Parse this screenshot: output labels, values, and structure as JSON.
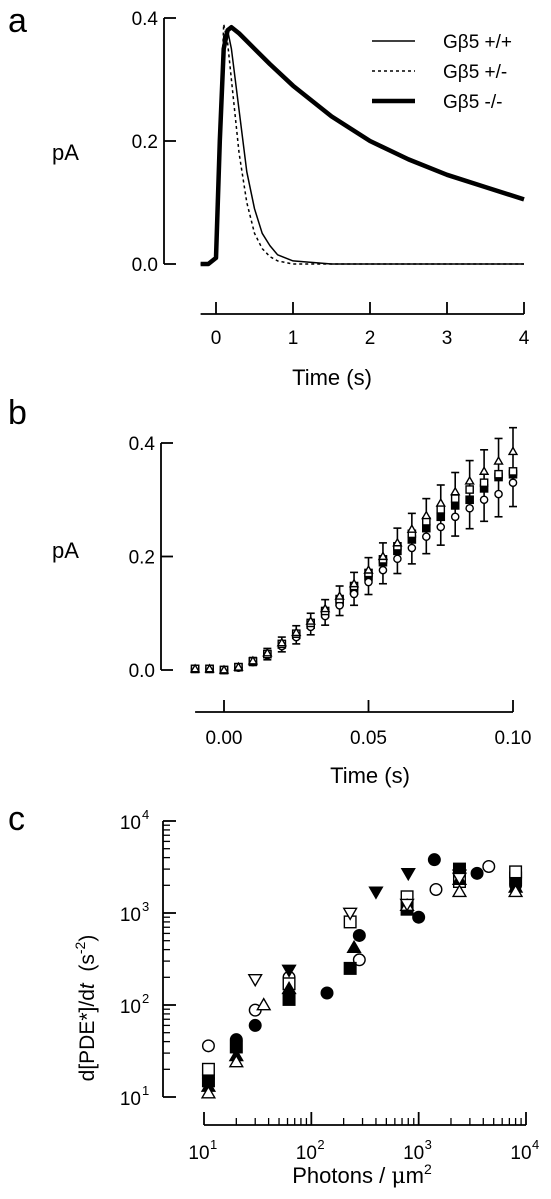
{
  "chart_data": [
    {
      "panel": "a",
      "type": "line",
      "xlabel": "Time (s)",
      "ylabel": "pA",
      "xlim": [
        -0.2,
        4
      ],
      "ylim": [
        0,
        0.4
      ],
      "xticks": [
        "0",
        "1",
        "2",
        "3",
        "4"
      ],
      "yticks": [
        "0.0",
        "0.2",
        "0.4"
      ],
      "legend_position": "top-right",
      "series": [
        {
          "name": "Gβ5 +/+",
          "style": "solid-thin",
          "x": [
            -0.2,
            -0.1,
            0,
            0.05,
            0.1,
            0.15,
            0.2,
            0.3,
            0.4,
            0.5,
            0.6,
            0.7,
            0.8,
            1.0,
            1.5,
            2,
            2.5,
            3,
            3.5,
            4
          ],
          "y": [
            0,
            0,
            0.01,
            0.2,
            0.37,
            0.38,
            0.35,
            0.25,
            0.15,
            0.09,
            0.05,
            0.03,
            0.015,
            0.005,
            0,
            0,
            0,
            0,
            0,
            0
          ]
        },
        {
          "name": "Gβ5 +/-",
          "style": "dotted",
          "x": [
            -0.2,
            -0.1,
            0,
            0.05,
            0.1,
            0.15,
            0.2,
            0.3,
            0.4,
            0.5,
            0.6,
            0.7,
            0.8,
            1.0,
            1.5,
            2,
            2.5,
            3,
            3.5,
            4
          ],
          "y": [
            0,
            0,
            0.01,
            0.22,
            0.39,
            0.36,
            0.3,
            0.18,
            0.1,
            0.05,
            0.025,
            0.012,
            0.005,
            0,
            0,
            0,
            0,
            0,
            0,
            0
          ]
        },
        {
          "name": "Gβ5 -/-",
          "style": "thick",
          "x": [
            -0.2,
            -0.1,
            0,
            0.05,
            0.1,
            0.15,
            0.2,
            0.3,
            0.5,
            0.7,
            1,
            1.5,
            2,
            2.5,
            3,
            3.5,
            4
          ],
          "y": [
            0,
            0,
            0.01,
            0.2,
            0.35,
            0.38,
            0.385,
            0.375,
            0.35,
            0.325,
            0.29,
            0.24,
            0.2,
            0.17,
            0.145,
            0.125,
            0.105
          ]
        }
      ]
    },
    {
      "panel": "b",
      "type": "scatter",
      "xlabel": "Time (s)",
      "ylabel": "pA",
      "xlim": [
        -0.01,
        0.1
      ],
      "ylim": [
        0,
        0.4
      ],
      "xticks": [
        "0.00",
        "0.05",
        "0.10"
      ],
      "yticks": [
        "0.0",
        "0.2",
        "0.4"
      ],
      "x": [
        -0.01,
        -0.005,
        0,
        0.005,
        0.01,
        0.015,
        0.02,
        0.025,
        0.03,
        0.035,
        0.04,
        0.045,
        0.05,
        0.055,
        0.06,
        0.065,
        0.07,
        0.075,
        0.08,
        0.085,
        0.09,
        0.095,
        0.1
      ],
      "series": [
        {
          "marker": "filled-square",
          "values": [
            0.002,
            0.002,
            0,
            0.005,
            0.015,
            0.028,
            0.045,
            0.062,
            0.08,
            0.1,
            0.12,
            0.14,
            0.165,
            0.19,
            0.21,
            0.23,
            0.25,
            0.27,
            0.29,
            0.3,
            0.32,
            0.34,
            0.345
          ]
        },
        {
          "marker": "open-circle",
          "values": [
            0.002,
            0.002,
            0,
            0.004,
            0.014,
            0.026,
            0.042,
            0.058,
            0.076,
            0.095,
            0.114,
            0.134,
            0.155,
            0.176,
            0.196,
            0.215,
            0.235,
            0.252,
            0.27,
            0.285,
            0.3,
            0.31,
            0.33
          ]
        },
        {
          "marker": "open-square",
          "values": [
            0.002,
            0.002,
            0,
            0.005,
            0.015,
            0.028,
            0.046,
            0.064,
            0.083,
            0.104,
            0.125,
            0.148,
            0.171,
            0.195,
            0.218,
            0.24,
            0.262,
            0.283,
            0.302,
            0.318,
            0.33,
            0.345,
            0.35
          ]
        },
        {
          "marker": "open-triangle",
          "values": [
            0.002,
            0.002,
            0,
            0.005,
            0.016,
            0.03,
            0.048,
            0.066,
            0.086,
            0.108,
            0.13,
            0.152,
            0.176,
            0.2,
            0.224,
            0.248,
            0.272,
            0.294,
            0.314,
            0.333,
            0.35,
            0.368,
            0.385
          ]
        }
      ],
      "error": [
        0.004,
        0.004,
        0.004,
        0.005,
        0.006,
        0.008,
        0.01,
        0.012,
        0.014,
        0.016,
        0.018,
        0.02,
        0.022,
        0.024,
        0.026,
        0.028,
        0.03,
        0.032,
        0.034,
        0.036,
        0.038,
        0.04,
        0.042
      ]
    },
    {
      "panel": "c",
      "type": "scatter",
      "log_x": true,
      "log_y": true,
      "xlabel_text": "Photons / ",
      "xlabel_greek": "μ",
      "xlabel_unit": "m",
      "xlabel_power": "2",
      "ylabel_text": "d[PDE*]/d",
      "ylabel_italic": "t",
      "ylabel_unit_open": "  (s",
      "ylabel_power": "-2",
      "ylabel_unit_close": ")",
      "xlim": [
        10,
        10000
      ],
      "ylim": [
        10,
        10000
      ],
      "xtick_labels": [
        {
          "base": "10",
          "exp": "1"
        },
        {
          "base": "10",
          "exp": "2"
        },
        {
          "base": "10",
          "exp": "3"
        },
        {
          "base": "10",
          "exp": "4"
        }
      ],
      "ytick_labels": [
        {
          "base": "10",
          "exp": "1"
        },
        {
          "base": "10",
          "exp": "2"
        },
        {
          "base": "10",
          "exp": "3"
        },
        {
          "base": "10",
          "exp": "4"
        }
      ],
      "points": [
        {
          "m": "filled-circle",
          "x": 11,
          "y": 16
        },
        {
          "m": "filled-circle",
          "x": 20,
          "y": 42
        },
        {
          "m": "filled-circle",
          "x": 30,
          "y": 60
        },
        {
          "m": "filled-circle",
          "x": 140,
          "y": 135
        },
        {
          "m": "filled-circle",
          "x": 280,
          "y": 570
        },
        {
          "m": "filled-circle",
          "x": 1000,
          "y": 900
        },
        {
          "m": "filled-circle",
          "x": 1400,
          "y": 3800
        },
        {
          "m": "filled-circle",
          "x": 3500,
          "y": 2700
        },
        {
          "m": "filled-circle",
          "x": 8000,
          "y": 2000
        },
        {
          "m": "open-circle",
          "x": 11,
          "y": 36
        },
        {
          "m": "open-circle",
          "x": 30,
          "y": 88
        },
        {
          "m": "open-circle",
          "x": 62,
          "y": 200
        },
        {
          "m": "open-circle",
          "x": 280,
          "y": 310
        },
        {
          "m": "open-circle",
          "x": 1450,
          "y": 1800
        },
        {
          "m": "open-circle",
          "x": 4500,
          "y": 3200
        },
        {
          "m": "filled-square",
          "x": 11,
          "y": 15
        },
        {
          "m": "filled-square",
          "x": 20,
          "y": 35
        },
        {
          "m": "filled-square",
          "x": 62,
          "y": 115
        },
        {
          "m": "filled-square",
          "x": 230,
          "y": 250
        },
        {
          "m": "filled-square",
          "x": 780,
          "y": 1100
        },
        {
          "m": "filled-square",
          "x": 2400,
          "y": 3000
        },
        {
          "m": "filled-square",
          "x": 8000,
          "y": 2400
        },
        {
          "m": "open-square",
          "x": 11,
          "y": 20
        },
        {
          "m": "open-square",
          "x": 62,
          "y": 170
        },
        {
          "m": "open-square",
          "x": 230,
          "y": 800
        },
        {
          "m": "open-square",
          "x": 780,
          "y": 1500
        },
        {
          "m": "open-square",
          "x": 2400,
          "y": 2200
        },
        {
          "m": "open-square",
          "x": 8000,
          "y": 2800
        },
        {
          "m": "filled-triangle",
          "x": 11,
          "y": 13
        },
        {
          "m": "filled-triangle",
          "x": 20,
          "y": 28
        },
        {
          "m": "filled-triangle",
          "x": 62,
          "y": 150
        },
        {
          "m": "filled-triangle",
          "x": 250,
          "y": 420
        },
        {
          "m": "filled-triangle",
          "x": 2400,
          "y": 2300
        },
        {
          "m": "filled-triangle",
          "x": 8000,
          "y": 1900
        },
        {
          "m": "open-triangle",
          "x": 11,
          "y": 11
        },
        {
          "m": "open-triangle",
          "x": 20,
          "y": 24
        },
        {
          "m": "open-triangle",
          "x": 36,
          "y": 100
        },
        {
          "m": "open-triangle",
          "x": 780,
          "y": 1200
        },
        {
          "m": "open-triangle",
          "x": 2400,
          "y": 1700
        },
        {
          "m": "open-triangle",
          "x": 8000,
          "y": 1700
        },
        {
          "m": "filled-down-triangle",
          "x": 62,
          "y": 240
        },
        {
          "m": "filled-down-triangle",
          "x": 400,
          "y": 1700
        },
        {
          "m": "filled-down-triangle",
          "x": 800,
          "y": 2700
        },
        {
          "m": "filled-down-triangle",
          "x": 2400,
          "y": 2600
        },
        {
          "m": "open-down-triangle",
          "x": 30,
          "y": 190
        },
        {
          "m": "open-down-triangle",
          "x": 230,
          "y": 1000
        },
        {
          "m": "open-down-triangle",
          "x": 780,
          "y": 1250
        },
        {
          "m": "open-down-triangle",
          "x": 2400,
          "y": 2400
        }
      ]
    }
  ],
  "panel_labels": {
    "a": "a",
    "b": "b",
    "c": "c"
  }
}
